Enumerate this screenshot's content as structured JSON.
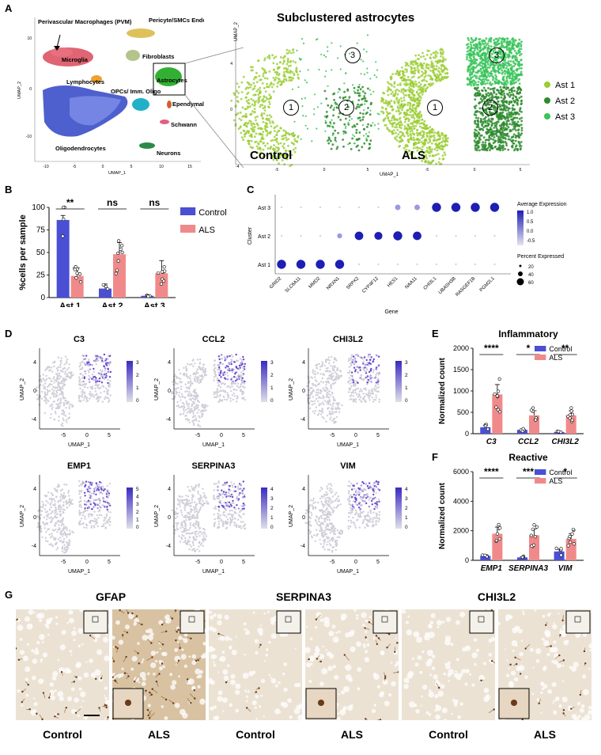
{
  "panels": {
    "A": {
      "letter": "A",
      "title": "Subclustered astrocytes",
      "umap_x": "UMAP_1",
      "umap_y": "UMAP_2",
      "overview_ticks_x": [
        "-10",
        "-5",
        "0",
        "5",
        "10",
        "15"
      ],
      "overview_ticks_y": [
        "10",
        "0",
        "-10"
      ],
      "cell_types": [
        "Perivascular Macrophages (PVM)",
        "Microglia",
        "Pericyte/SMCs Endothelial",
        "Fibroblasts",
        "Lymphocytes",
        "Astrocytes",
        "OPCs/ Imm. Oligo",
        "Ependymal",
        "Schwann",
        "Oligodendrocytes",
        "Neurons"
      ],
      "sub_ticks_x": [
        "-5",
        "0",
        "5"
      ],
      "sub_ticks_y": [
        "4",
        "0",
        "-4"
      ],
      "control_label": "Control",
      "als_label": "ALS",
      "cluster_numbers": [
        "1",
        "2",
        "3"
      ],
      "legend": [
        {
          "name": "Ast 1",
          "color": "#9acd32"
        },
        {
          "name": "Ast 2",
          "color": "#2e8b2e"
        },
        {
          "name": "Ast 3",
          "color": "#39c45a"
        }
      ]
    },
    "B": {
      "letter": "B",
      "ylabel": "%cells per sample",
      "legend": [
        "Control",
        "ALS"
      ],
      "chart_data": {
        "type": "bar",
        "categories": [
          "Ast 1",
          "Ast 2",
          "Ast 3"
        ],
        "series": [
          {
            "name": "Control",
            "values": [
              86,
              10,
              2
            ],
            "error": [
              5,
              5,
              1
            ]
          },
          {
            "name": "ALS",
            "values": [
              24,
              48,
              27
            ],
            "error": [
              9,
              13,
              14
            ]
          }
        ],
        "yticks": [
          "0",
          "25",
          "50",
          "75",
          "100"
        ],
        "ylim": [
          0,
          100
        ],
        "significance": [
          "**",
          "ns",
          "ns"
        ]
      }
    },
    "C": {
      "letter": "C",
      "xlabel": "Gene",
      "ylabel": "Cluster",
      "clusters": [
        "Ast 3",
        "Ast 2",
        "Ast 1"
      ],
      "genes": [
        "GRID2",
        "SLC6A11",
        "MMD2",
        "NRXN1",
        "SRPX2",
        "CYP4F12",
        "HES1",
        "NAA11",
        "CHI3L1",
        "UBASH3B",
        "RASGEF1B",
        "PGM2L1"
      ],
      "legend_title_expr": "Average Expression",
      "legend_expr_ticks": [
        "1.0",
        "0.5",
        "0.0",
        "-0.5"
      ],
      "legend_title_pct": "Percent Expressed",
      "legend_pct": [
        "20",
        "40",
        "60"
      ]
    },
    "D": {
      "letter": "D",
      "genes": [
        {
          "name": "C3",
          "scale": [
            "3",
            "2",
            "1",
            "0"
          ]
        },
        {
          "name": "CCL2",
          "scale": [
            "3",
            "2",
            "1",
            "0"
          ]
        },
        {
          "name": "CHI3L2",
          "scale": [
            "3",
            "2",
            "1",
            "0"
          ]
        },
        {
          "name": "EMP1",
          "scale": [
            "5",
            "4",
            "3",
            "2",
            "1",
            "0"
          ]
        },
        {
          "name": "SERPINA3",
          "scale": [
            "4",
            "3",
            "2",
            "1",
            "0"
          ]
        },
        {
          "name": "VIM",
          "scale": [
            "4",
            "3",
            "2",
            "1",
            "0"
          ]
        }
      ],
      "ticks_x": [
        "-5",
        "0",
        "5"
      ],
      "ticks_y": [
        "4",
        "0",
        "-4"
      ],
      "xlabel": "UMAP_1",
      "ylabel": "UMAP_2"
    },
    "E": {
      "letter": "E",
      "title": "Inflammatory",
      "ylabel": "Normalized count",
      "legend": [
        "Control",
        "ALS"
      ],
      "chart_data": {
        "type": "bar",
        "categories": [
          "C3",
          "CCL2",
          "CHI3L2"
        ],
        "series": [
          {
            "name": "Control",
            "values": [
              150,
              90,
              40
            ]
          },
          {
            "name": "ALS",
            "values": [
              920,
              430,
              430
            ]
          }
        ],
        "yticks": [
          "0",
          "500",
          "1000",
          "1500",
          "2000"
        ],
        "ylim": [
          0,
          2000
        ],
        "significance": [
          "****",
          "*",
          "**"
        ]
      }
    },
    "F": {
      "letter": "F",
      "title": "Reactive",
      "ylabel": "Normalized count",
      "legend": [
        "Control",
        "ALS"
      ],
      "chart_data": {
        "type": "bar",
        "categories": [
          "EMP1",
          "SERPINA3",
          "VIM"
        ],
        "series": [
          {
            "name": "Control",
            "values": [
              300,
              200,
              600
            ]
          },
          {
            "name": "ALS",
            "values": [
              1800,
              1700,
              1450
            ]
          }
        ],
        "yticks": [
          "0",
          "2000",
          "4000",
          "6000"
        ],
        "ylim": [
          0,
          6000
        ],
        "significance": [
          "****",
          "***",
          "*"
        ]
      }
    },
    "G": {
      "letter": "G",
      "stains": [
        "GFAP",
        "SERPINA3",
        "CHI3L2"
      ],
      "conditions": [
        "Control",
        "ALS"
      ]
    }
  },
  "colors": {
    "control": "#4a4fd4",
    "als": "#f08a8a",
    "cluster1": "#9acd32",
    "cluster2": "#2e8b2e",
    "cluster3": "#39c45a"
  }
}
